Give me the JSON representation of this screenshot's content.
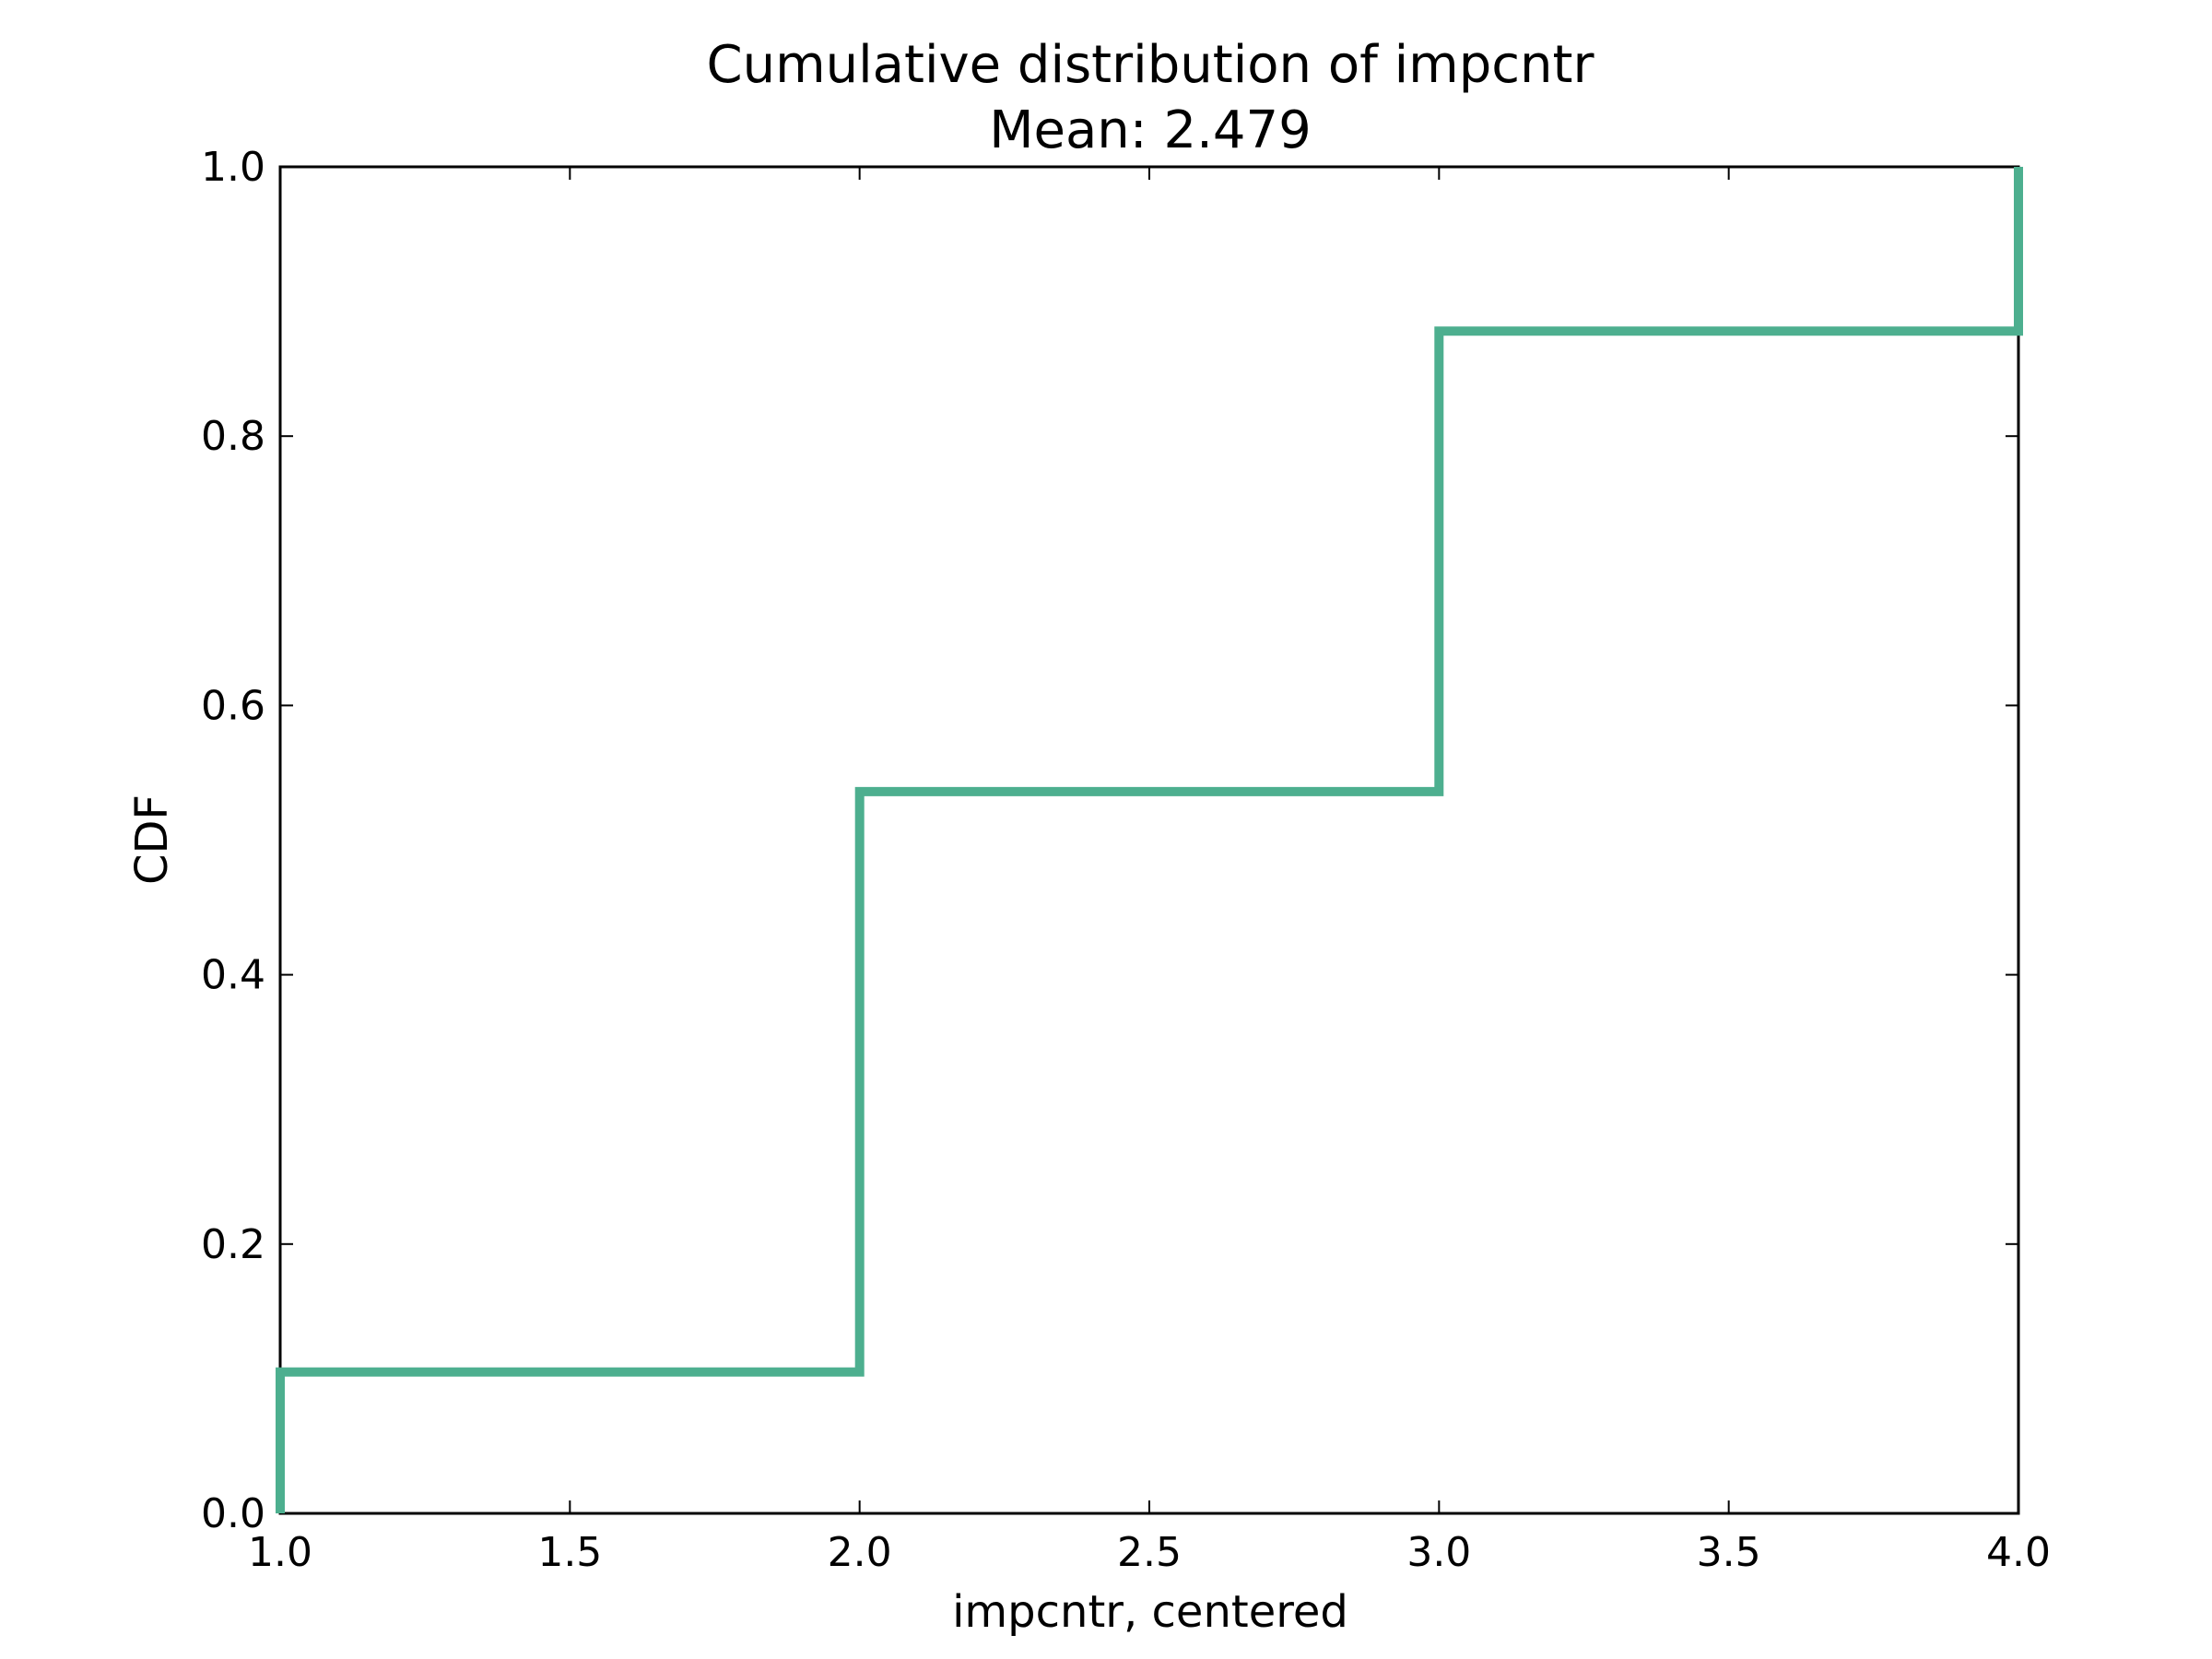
{
  "chart_data": {
    "type": "line",
    "step": true,
    "title": "Cumulative distribution of impcntr",
    "subtitle": "Mean: 2.479",
    "xlabel": "impcntr, centered",
    "ylabel": "CDF",
    "xlim": [
      1.0,
      4.0
    ],
    "ylim": [
      0.0,
      1.0
    ],
    "xticks": [
      1.0,
      1.5,
      2.0,
      2.5,
      3.0,
      3.5,
      4.0
    ],
    "xtick_labels": [
      "1.0",
      "1.5",
      "2.0",
      "2.5",
      "3.0",
      "3.5",
      "4.0"
    ],
    "yticks": [
      0.0,
      0.2,
      0.4,
      0.6,
      0.8,
      1.0
    ],
    "ytick_labels": [
      "0.0",
      "0.2",
      "0.4",
      "0.6",
      "0.8",
      "1.0"
    ],
    "grid": false,
    "series": [
      {
        "color": "#4daf8f",
        "x": [
          1.0,
          1.0,
          2.0,
          2.0,
          3.0,
          3.0,
          4.0,
          4.0
        ],
        "y": [
          0.0,
          0.105,
          0.105,
          0.536,
          0.536,
          0.878,
          0.878,
          1.0
        ]
      }
    ]
  }
}
